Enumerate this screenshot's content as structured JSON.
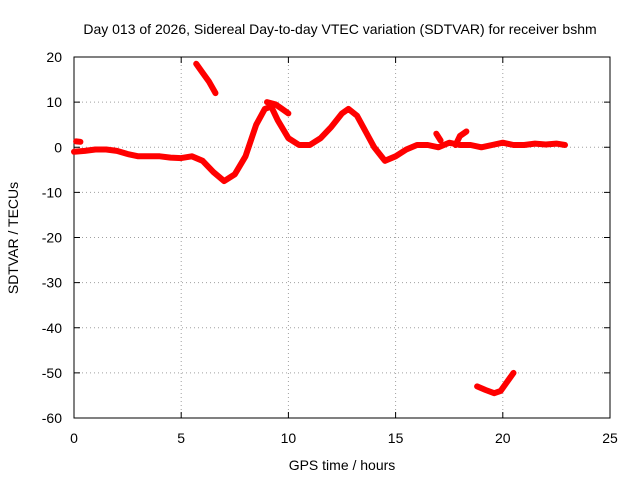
{
  "chart_data": {
    "type": "line",
    "title": "Day 013 of 2026, Sidereal Day-to-day VTEC variation (SDTVAR) for receiver bshm",
    "xlabel": "GPS time / hours",
    "ylabel": "SDTVAR / TECUs",
    "xlim": [
      0,
      25
    ],
    "ylim": [
      -60,
      20
    ],
    "xticks": [
      0,
      5,
      10,
      15,
      20,
      25
    ],
    "yticks": [
      -60,
      -50,
      -40,
      -30,
      -20,
      -10,
      0,
      10,
      20
    ],
    "grid": true,
    "legend": "none",
    "series_color": "#ff0000",
    "series": [
      {
        "name": "main",
        "points": [
          [
            0.0,
            -1.0
          ],
          [
            0.5,
            -0.8
          ],
          [
            1.0,
            -0.5
          ],
          [
            1.5,
            -0.5
          ],
          [
            2.0,
            -0.8
          ],
          [
            2.5,
            -1.5
          ],
          [
            3.0,
            -2.0
          ],
          [
            3.5,
            -2.0
          ],
          [
            4.0,
            -2.0
          ],
          [
            4.5,
            -2.3
          ],
          [
            5.0,
            -2.4
          ],
          [
            5.5,
            -2.0
          ],
          [
            6.0,
            -3.0
          ],
          [
            6.5,
            -5.5
          ],
          [
            7.0,
            -7.5
          ],
          [
            7.5,
            -6.0
          ],
          [
            8.0,
            -2.0
          ],
          [
            8.5,
            5.0
          ],
          [
            8.9,
            8.5
          ],
          [
            9.2,
            9.0
          ],
          [
            9.5,
            6.0
          ],
          [
            10.0,
            2.0
          ],
          [
            10.5,
            0.5
          ],
          [
            11.0,
            0.5
          ],
          [
            11.5,
            2.0
          ],
          [
            12.0,
            4.5
          ],
          [
            12.5,
            7.5
          ],
          [
            12.8,
            8.5
          ],
          [
            13.2,
            7.0
          ],
          [
            13.6,
            3.5
          ],
          [
            14.0,
            0.0
          ],
          [
            14.5,
            -3.0
          ],
          [
            15.0,
            -2.0
          ],
          [
            15.5,
            -0.5
          ],
          [
            16.0,
            0.5
          ],
          [
            16.5,
            0.5
          ],
          [
            17.0,
            0.0
          ],
          [
            17.5,
            1.0
          ],
          [
            18.0,
            0.5
          ],
          [
            18.5,
            0.5
          ],
          [
            19.0,
            0.0
          ],
          [
            19.5,
            0.5
          ],
          [
            20.0,
            1.0
          ],
          [
            20.5,
            0.5
          ],
          [
            21.0,
            0.5
          ],
          [
            21.5,
            0.8
          ],
          [
            22.0,
            0.6
          ],
          [
            22.5,
            0.8
          ],
          [
            22.9,
            0.5
          ]
        ]
      },
      {
        "name": "early-marks",
        "points": [
          [
            0.1,
            1.3
          ],
          [
            0.3,
            1.2
          ]
        ]
      },
      {
        "name": "upper-segment",
        "points": [
          [
            5.7,
            18.5
          ],
          [
            6.0,
            16.5
          ],
          [
            6.3,
            14.5
          ],
          [
            6.6,
            12.0
          ]
        ]
      },
      {
        "name": "spike",
        "points": [
          [
            17.8,
            0.5
          ],
          [
            18.0,
            2.5
          ],
          [
            18.3,
            3.5
          ]
        ]
      },
      {
        "name": "spike-2",
        "points": [
          [
            16.9,
            3.0
          ],
          [
            17.1,
            1.5
          ]
        ]
      },
      {
        "name": "late-branch",
        "points": [
          [
            9.0,
            10.0
          ],
          [
            9.4,
            9.5
          ],
          [
            9.7,
            8.5
          ],
          [
            10.0,
            7.5
          ]
        ]
      },
      {
        "name": "lower-arc",
        "points": [
          [
            18.8,
            -53.0
          ],
          [
            19.2,
            -53.8
          ],
          [
            19.6,
            -54.5
          ],
          [
            19.9,
            -54.0
          ],
          [
            20.2,
            -52.0
          ],
          [
            20.5,
            -50.0
          ]
        ]
      }
    ]
  }
}
